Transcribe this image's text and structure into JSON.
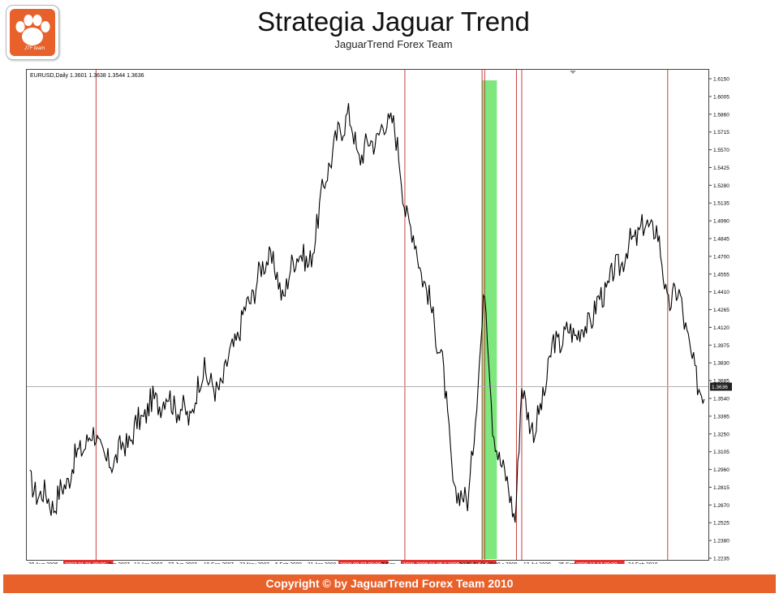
{
  "header": {
    "title": "Strategia Jaguar Trend",
    "subtitle": "JaguarTrend Forex Team",
    "logo_text": "JTF team"
  },
  "footer": {
    "text": "Copyright © by JaguarTrend Forex Team 2010"
  },
  "colors": {
    "accent": "#e8612a",
    "signal_line": "#c84040",
    "highlight_zone": "#7ee87e",
    "price_line": "#000000",
    "current_price_line": "#b0b0b0"
  },
  "chart_data": {
    "type": "line",
    "info_label": "EURUSD,Daily  1.3601 1.3638 1.3544 1.3636",
    "symbol": "EURUSD",
    "timeframe": "Daily",
    "ylim": [
      1.2235,
      1.615
    ],
    "yticks": [
      "1.6150",
      "1.6005",
      "1.5860",
      "1.5715",
      "1.5570",
      "1.5425",
      "1.5280",
      "1.5135",
      "1.4990",
      "1.4845",
      "1.4700",
      "1.4555",
      "1.4410",
      "1.4265",
      "1.4120",
      "1.3975",
      "1.3830",
      "1.3685",
      "1.3540",
      "1.3395",
      "1.3250",
      "1.3105",
      "1.2960",
      "1.2815",
      "1.2670",
      "1.2525",
      "1.2380",
      "1.2235"
    ],
    "current_price": "1.3636",
    "xtick_labels": [
      "29 Aug 2006",
      "2007.01.01 00:00",
      "Jan 2007",
      "13 Apr 2007",
      "27 Jun 2007",
      "10 Sep 2007",
      "23 Nov 2007",
      "6 Feb 2008",
      "21 Apr 2008",
      "2008.08.07 00:00",
      "7 Sep",
      "2008.12",
      "2009.01.05 00",
      "2009.03.16 00:00",
      "2009.03.16 00:00",
      "r 2009",
      "13 Jul 2009",
      "25 Sep",
      "2009.12.17 00:00",
      "24 Feb 2010"
    ],
    "signal_dates": [
      "2007.01.01",
      "2008.08.07",
      "2008.12.31",
      "2009.01.05",
      "2009.03.06",
      "2009.03.16",
      "2009.12.17"
    ],
    "highlight_range": [
      "2008.12.31",
      "2009.01.28"
    ],
    "x": [
      "2006-08-29",
      "2006-10-15",
      "2006-11-01",
      "2006-12-05",
      "2007-01-01",
      "2007-01-20",
      "2007-03-01",
      "2007-04-13",
      "2007-05-15",
      "2007-06-27",
      "2007-07-25",
      "2007-08-15",
      "2007-09-10",
      "2007-10-10",
      "2007-11-23",
      "2007-12-20",
      "2008-01-20",
      "2008-02-06",
      "2008-03-15",
      "2008-04-21",
      "2008-05-10",
      "2008-06-15",
      "2008-07-15",
      "2008-08-07",
      "2008-09-10",
      "2008-10-15",
      "2008-11-10",
      "2008-12-05",
      "2008-12-18",
      "2009-01-05",
      "2009-01-20",
      "2009-02-15",
      "2009-03-04",
      "2009-03-16",
      "2009-04-10",
      "2009-05-15",
      "2009-06-15",
      "2009-07-13",
      "2009-08-15",
      "2009-09-25",
      "2009-10-25",
      "2009-11-25",
      "2009-12-17",
      "2010-01-10",
      "2010-01-30",
      "2010-02-24"
    ],
    "y": [
      1.283,
      1.268,
      1.282,
      1.315,
      1.326,
      1.298,
      1.318,
      1.349,
      1.355,
      1.338,
      1.38,
      1.356,
      1.386,
      1.425,
      1.473,
      1.438,
      1.478,
      1.458,
      1.545,
      1.589,
      1.552,
      1.568,
      1.585,
      1.512,
      1.455,
      1.39,
      1.272,
      1.275,
      1.332,
      1.45,
      1.33,
      1.285,
      1.258,
      1.361,
      1.324,
      1.398,
      1.408,
      1.41,
      1.438,
      1.47,
      1.492,
      1.495,
      1.432,
      1.44,
      1.385,
      1.355
    ]
  }
}
